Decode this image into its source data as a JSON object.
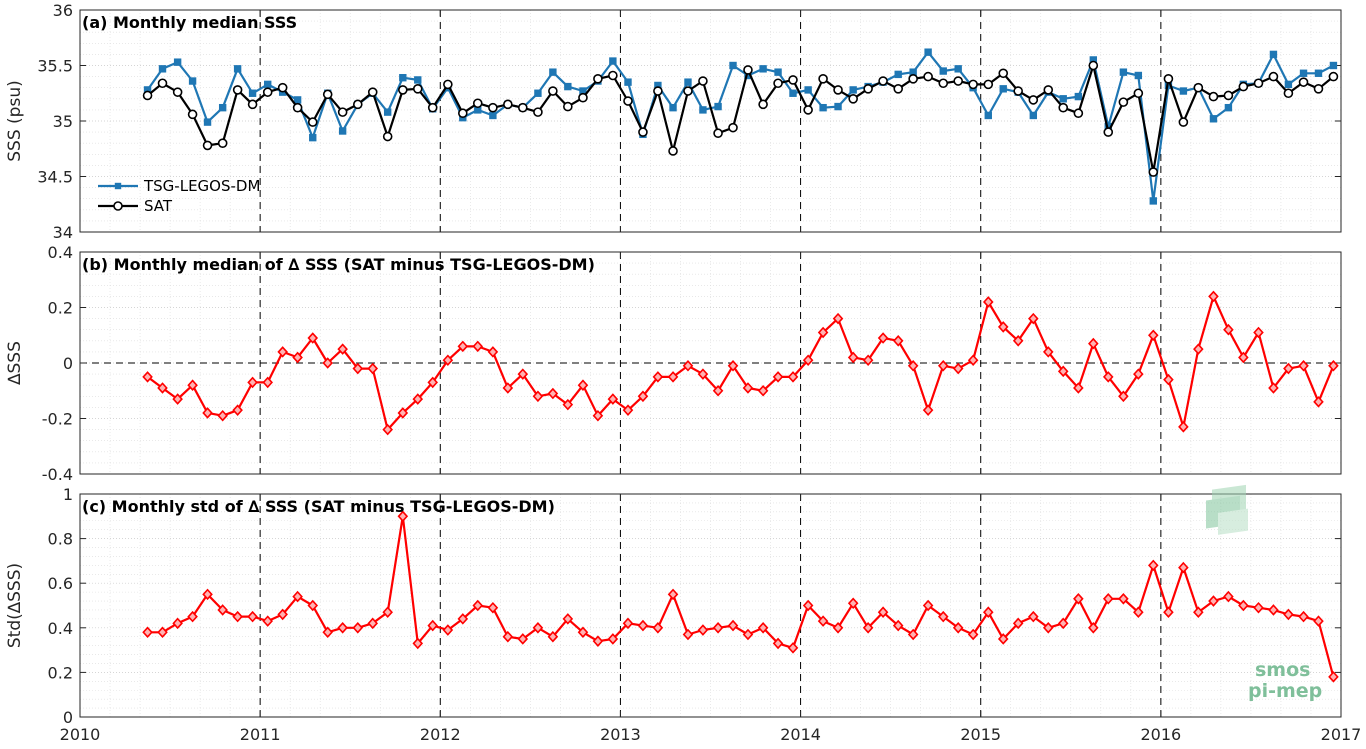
{
  "x_axis": {
    "min": 2010,
    "max": 2017,
    "ticks": [
      "2010",
      "2011",
      "2012",
      "2013",
      "2014",
      "2015",
      "2016",
      "2017"
    ]
  },
  "months": [
    "2010.375",
    "2010.458",
    "2010.542",
    "2010.625",
    "2010.708",
    "2010.792",
    "2010.875",
    "2010.958",
    "2011.042",
    "2011.125",
    "2011.208",
    "2011.292",
    "2011.375",
    "2011.458",
    "2011.542",
    "2011.625",
    "2011.708",
    "2011.792",
    "2011.875",
    "2011.958",
    "2012.042",
    "2012.125",
    "2012.208",
    "2012.292",
    "2012.375",
    "2012.458",
    "2012.542",
    "2012.625",
    "2012.708",
    "2012.792",
    "2012.875",
    "2012.958",
    "2013.042",
    "2013.125",
    "2013.208",
    "2013.292",
    "2013.375",
    "2013.458",
    "2013.542",
    "2013.625",
    "2013.708",
    "2013.792",
    "2013.875",
    "2013.958",
    "2014.042",
    "2014.125",
    "2014.208",
    "2014.292",
    "2014.375",
    "2014.458",
    "2014.542",
    "2014.625",
    "2014.708",
    "2014.792",
    "2014.875",
    "2014.958",
    "2015.042",
    "2015.125",
    "2015.208",
    "2015.292",
    "2015.375",
    "2015.458",
    "2015.542",
    "2015.625",
    "2015.708",
    "2015.792",
    "2015.875",
    "2015.958",
    "2016.042",
    "2016.125",
    "2016.208",
    "2016.292",
    "2016.375",
    "2016.458",
    "2016.542",
    "2016.625",
    "2016.708",
    "2016.792",
    "2016.875",
    "2016.958"
  ],
  "chart_data": [
    {
      "type": "line",
      "title": "(a) Monthly median SSS",
      "ylabel": "SSS (psu)",
      "ylim": [
        34,
        36
      ],
      "yticks": [
        "34",
        "34.5",
        "35",
        "35.5",
        "36"
      ],
      "grid": true,
      "legend_position": "bottom-left",
      "series": [
        {
          "name": "TSG-LEGOS-DM",
          "color": "#1f77b4",
          "marker": "square",
          "values": [
            35.28,
            35.47,
            35.53,
            35.36,
            34.99,
            35.12,
            35.47,
            35.25,
            35.33,
            35.26,
            35.19,
            34.85,
            35.25,
            34.91,
            35.15,
            35.25,
            35.08,
            35.39,
            35.37,
            35.11,
            35.3,
            35.03,
            35.1,
            35.05,
            35.15,
            35.12,
            35.25,
            35.44,
            35.31,
            35.27,
            35.36,
            35.54,
            35.35,
            34.88,
            35.32,
            35.12,
            35.35,
            35.1,
            35.13,
            35.5,
            35.41,
            35.47,
            35.44,
            35.25,
            35.28,
            35.12,
            35.13,
            35.28,
            35.31,
            35.35,
            35.42,
            35.44,
            35.62,
            35.45,
            35.47,
            35.3,
            35.05,
            35.29,
            35.26,
            35.05,
            35.26,
            35.2,
            35.22,
            35.55,
            34.95,
            35.44,
            35.41,
            34.28,
            35.32,
            35.27,
            35.3,
            35.02,
            35.12,
            35.33,
            35.34,
            35.6,
            35.33,
            35.43,
            35.43,
            35.5
          ]
        },
        {
          "name": "SAT",
          "color": "#000000",
          "marker": "circle",
          "values": [
            35.23,
            35.34,
            35.26,
            35.06,
            34.78,
            34.8,
            35.28,
            35.15,
            35.26,
            35.3,
            35.12,
            34.99,
            35.24,
            35.08,
            35.15,
            35.26,
            34.86,
            35.28,
            35.29,
            35.12,
            35.33,
            35.07,
            35.16,
            35.12,
            35.15,
            35.12,
            35.08,
            35.27,
            35.13,
            35.21,
            35.38,
            35.41,
            35.18,
            34.9,
            35.27,
            34.73,
            35.27,
            35.36,
            34.89,
            34.94,
            35.46,
            35.15,
            35.34,
            35.37,
            35.1,
            35.38,
            35.28,
            35.2,
            35.29,
            35.36,
            35.29,
            35.38,
            35.4,
            35.34,
            35.36,
            35.33,
            35.33,
            35.43,
            35.27,
            35.19,
            35.28,
            35.12,
            35.07,
            35.5,
            34.9,
            35.17,
            35.25,
            34.54,
            35.38,
            34.99,
            35.3,
            35.22,
            35.23,
            35.31,
            35.34,
            35.4,
            35.25,
            35.35,
            35.29,
            35.4
          ]
        }
      ]
    },
    {
      "type": "line",
      "title": "(b) Monthly median of ∆ SSS (SAT minus TSG-LEGOS-DM)",
      "ylabel": "∆SSS",
      "ylim": [
        -0.4,
        0.4
      ],
      "yticks": [
        "-0.4",
        "-0.2",
        "0",
        "0.2",
        "0.4"
      ],
      "grid": true,
      "zero_line": true,
      "series": [
        {
          "name": "",
          "color": "#ff0000",
          "marker": "diamond",
          "values": [
            -0.05,
            -0.09,
            -0.13,
            -0.08,
            -0.18,
            -0.19,
            -0.17,
            -0.07,
            -0.07,
            0.04,
            0.02,
            0.09,
            0.0,
            0.05,
            -0.02,
            -0.02,
            -0.24,
            -0.18,
            -0.13,
            -0.07,
            0.01,
            0.06,
            0.06,
            0.04,
            -0.09,
            -0.04,
            -0.12,
            -0.11,
            -0.15,
            -0.08,
            -0.19,
            -0.13,
            -0.17,
            -0.12,
            -0.05,
            -0.05,
            -0.01,
            -0.04,
            -0.1,
            -0.01,
            -0.09,
            -0.1,
            -0.05,
            -0.05,
            0.01,
            0.11,
            0.16,
            0.02,
            0.01,
            0.09,
            0.08,
            -0.01,
            -0.17,
            -0.01,
            -0.02,
            0.01,
            0.22,
            0.13,
            0.08,
            0.16,
            0.04,
            -0.03,
            -0.09,
            0.07,
            -0.05,
            -0.12,
            -0.04,
            0.1,
            -0.06,
            -0.23,
            0.05,
            0.24,
            0.12,
            0.02,
            0.11,
            -0.09,
            -0.02,
            -0.01,
            -0.14,
            -0.01
          ]
        }
      ]
    },
    {
      "type": "line",
      "title": "(c) Monthly std of ∆ SSS (SAT minus TSG-LEGOS-DM)",
      "ylabel": "Std(∆SSS)",
      "ylim": [
        0,
        1
      ],
      "yticks": [
        "0",
        "0.2",
        "0.4",
        "0.6",
        "0.8",
        "1"
      ],
      "grid": true,
      "series": [
        {
          "name": "",
          "color": "#ff0000",
          "marker": "diamond",
          "values": [
            0.38,
            0.38,
            0.42,
            0.45,
            0.55,
            0.48,
            0.45,
            0.45,
            0.43,
            0.46,
            0.54,
            0.5,
            0.38,
            0.4,
            0.4,
            0.42,
            0.47,
            0.9,
            0.33,
            0.41,
            0.39,
            0.44,
            0.5,
            0.49,
            0.36,
            0.35,
            0.4,
            0.36,
            0.44,
            0.38,
            0.34,
            0.35,
            0.42,
            0.41,
            0.4,
            0.55,
            0.37,
            0.39,
            0.4,
            0.41,
            0.37,
            0.4,
            0.33,
            0.31,
            0.5,
            0.43,
            0.4,
            0.51,
            0.4,
            0.47,
            0.41,
            0.37,
            0.5,
            0.45,
            0.4,
            0.37,
            0.47,
            0.35,
            0.42,
            0.45,
            0.4,
            0.42,
            0.53,
            0.4,
            0.53,
            0.53,
            0.47,
            0.68,
            0.47,
            0.67,
            0.47,
            0.52,
            0.54,
            0.5,
            0.49,
            0.48,
            0.46,
            0.45,
            0.43,
            0.18
          ]
        }
      ]
    }
  ],
  "watermark": {
    "line1": "smos",
    "line2": "pi-mep"
  }
}
